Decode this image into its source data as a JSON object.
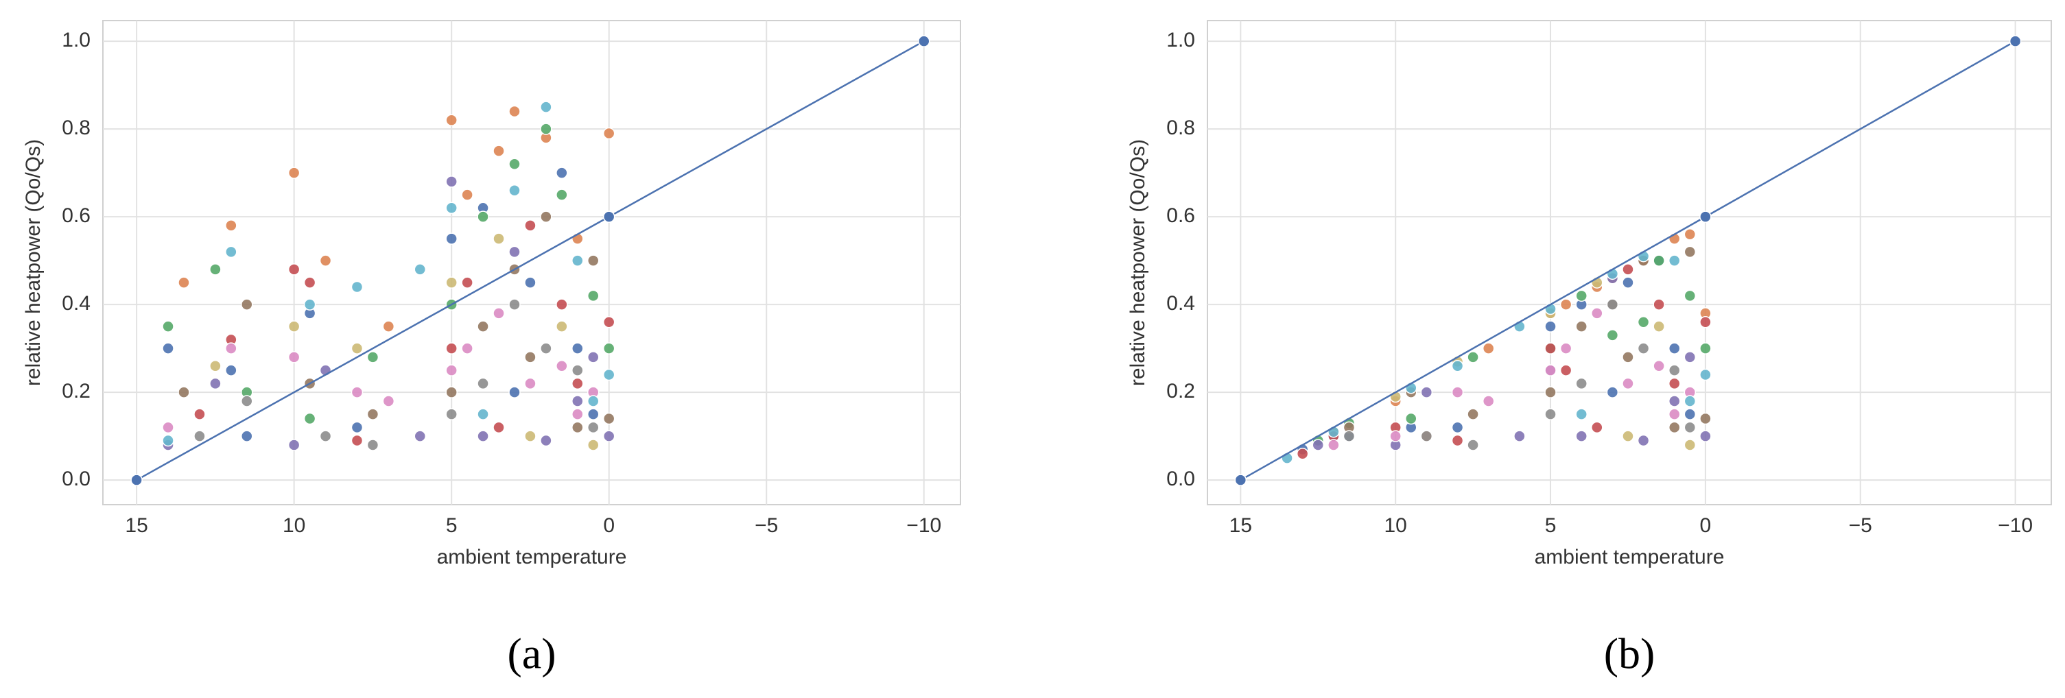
{
  "chart_data": [
    {
      "type": "scatter",
      "caption": "(a)",
      "xlabel": "ambient temperature",
      "ylabel": "relative heatpower (Qo/Qs)",
      "xlim": [
        16.07,
        -11.16
      ],
      "ylim": [
        -0.056,
        1.047
      ],
      "grid": true,
      "xticks": [
        15,
        10,
        5,
        0,
        {
          "value": -5,
          "label": "−5"
        },
        {
          "value": -10,
          "label": "−10"
        }
      ],
      "yticks": [
        {
          "value": 0,
          "label": "0.0"
        },
        0.2,
        0.4,
        0.6,
        0.8,
        {
          "value": 1,
          "label": "1.0"
        }
      ],
      "line": {
        "color": "#4c72b0",
        "x": [
          15,
          0,
          -10
        ],
        "values": [
          0,
          0.6,
          1
        ]
      },
      "series": [
        {
          "color": "#4c72b0",
          "x": [
            14,
            12,
            11.5,
            9.5,
            8,
            5,
            4,
            3,
            2.5,
            1.5,
            1,
            0.5
          ],
          "values": [
            0.3,
            0.25,
            0.1,
            0.38,
            0.12,
            0.55,
            0.62,
            0.2,
            0.45,
            0.7,
            0.3,
            0.15
          ]
        },
        {
          "color": "#dd8452",
          "x": [
            13.5,
            12,
            10,
            9,
            7,
            5,
            4.5,
            3.5,
            3,
            2,
            1,
            0
          ],
          "values": [
            0.45,
            0.58,
            0.7,
            0.5,
            0.35,
            0.82,
            0.65,
            0.75,
            0.84,
            0.78,
            0.55,
            0.79
          ]
        },
        {
          "color": "#55a868",
          "x": [
            14,
            12.5,
            11.5,
            9.5,
            7.5,
            5,
            4,
            3,
            2,
            1.5,
            0.5,
            0
          ],
          "values": [
            0.35,
            0.48,
            0.2,
            0.14,
            0.28,
            0.4,
            0.6,
            0.72,
            0.8,
            0.65,
            0.42,
            0.3
          ]
        },
        {
          "color": "#c44e52",
          "x": [
            13,
            12,
            10,
            9.5,
            8,
            5,
            4.5,
            3.5,
            2.5,
            1.5,
            1,
            0
          ],
          "values": [
            0.15,
            0.32,
            0.48,
            0.45,
            0.09,
            0.3,
            0.45,
            0.12,
            0.58,
            0.4,
            0.22,
            0.36
          ]
        },
        {
          "color": "#8172b3",
          "x": [
            14,
            12.5,
            10,
            9,
            6,
            5,
            4,
            3,
            2,
            1,
            0.5,
            0
          ],
          "values": [
            0.08,
            0.22,
            0.08,
            0.25,
            0.1,
            0.68,
            0.1,
            0.52,
            0.09,
            0.18,
            0.28,
            0.1
          ]
        },
        {
          "color": "#937860",
          "x": [
            13.5,
            11.5,
            9.5,
            7.5,
            5,
            4,
            3,
            2.5,
            2,
            1,
            0.5,
            0
          ],
          "values": [
            0.2,
            0.4,
            0.22,
            0.15,
            0.2,
            0.35,
            0.48,
            0.28,
            0.6,
            0.12,
            0.5,
            0.14
          ]
        },
        {
          "color": "#da8bc3",
          "x": [
            14,
            12,
            10,
            8,
            7,
            5,
            4.5,
            3.5,
            2.5,
            1.5,
            1,
            0.5
          ],
          "values": [
            0.12,
            0.3,
            0.28,
            0.2,
            0.18,
            0.25,
            0.3,
            0.38,
            0.22,
            0.26,
            0.15,
            0.2
          ]
        },
        {
          "color": "#8c8c8c",
          "x": [
            13,
            11.5,
            9,
            7.5,
            5,
            4,
            3,
            2,
            1,
            0.5
          ],
          "values": [
            0.1,
            0.18,
            0.1,
            0.08,
            0.15,
            0.22,
            0.4,
            0.3,
            0.25,
            0.12
          ]
        },
        {
          "color": "#ccb974",
          "x": [
            12.5,
            10,
            8,
            5,
            3.5,
            2.5,
            1.5,
            0.5
          ],
          "values": [
            0.26,
            0.35,
            0.3,
            0.45,
            0.55,
            0.1,
            0.35,
            0.08
          ]
        },
        {
          "color": "#64b5cd",
          "x": [
            14,
            12,
            9.5,
            8,
            6,
            5,
            4,
            3,
            2,
            1,
            0.5,
            0
          ],
          "values": [
            0.09,
            0.52,
            0.4,
            0.44,
            0.48,
            0.62,
            0.15,
            0.66,
            0.85,
            0.5,
            0.18,
            0.24
          ]
        }
      ]
    },
    {
      "type": "scatter",
      "caption": "(b)",
      "xlabel": "ambient temperature",
      "ylabel": "relative heatpower (Qo/Qs)",
      "xlim": [
        16.07,
        -11.16
      ],
      "ylim": [
        -0.056,
        1.047
      ],
      "grid": true,
      "xticks": [
        15,
        10,
        5,
        0,
        {
          "value": -5,
          "label": "−5"
        },
        {
          "value": -10,
          "label": "−10"
        }
      ],
      "yticks": [
        {
          "value": 0,
          "label": "0.0"
        },
        0.2,
        0.4,
        0.6,
        0.8,
        {
          "value": 1,
          "label": "1.0"
        }
      ],
      "line": {
        "color": "#4c72b0",
        "x": [
          15,
          0,
          -10
        ],
        "values": [
          0,
          0.6,
          1
        ]
      },
      "series": [
        {
          "color": "#4c72b0",
          "x": [
            13,
            12,
            11.5,
            9.5,
            8,
            5,
            4,
            3,
            2.5,
            1.5,
            1,
            0.5
          ],
          "values": [
            0.07,
            0.1,
            0.1,
            0.12,
            0.12,
            0.35,
            0.4,
            0.2,
            0.45,
            0.5,
            0.3,
            0.15
          ]
        },
        {
          "color": "#dd8452",
          "x": [
            12,
            10,
            9,
            7,
            5,
            4.5,
            3.5,
            3,
            2,
            1,
            0.5,
            0
          ],
          "values": [
            0.11,
            0.18,
            0.1,
            0.3,
            0.38,
            0.4,
            0.44,
            0.46,
            0.5,
            0.55,
            0.56,
            0.38
          ]
        },
        {
          "color": "#55a868",
          "x": [
            12.5,
            11.5,
            9.5,
            7.5,
            5,
            4,
            3,
            2,
            1.5,
            0.5,
            0
          ],
          "values": [
            0.09,
            0.13,
            0.14,
            0.28,
            0.3,
            0.42,
            0.33,
            0.36,
            0.5,
            0.42,
            0.3
          ]
        },
        {
          "color": "#c44e52",
          "x": [
            13,
            12,
            10,
            8,
            5,
            4.5,
            3.5,
            2.5,
            1.5,
            1,
            0
          ],
          "values": [
            0.06,
            0.1,
            0.12,
            0.09,
            0.3,
            0.25,
            0.12,
            0.48,
            0.4,
            0.22,
            0.36
          ]
        },
        {
          "color": "#8172b3",
          "x": [
            12.5,
            10,
            9,
            6,
            5,
            4,
            3,
            2,
            1,
            0.5,
            0
          ],
          "values": [
            0.08,
            0.08,
            0.2,
            0.1,
            0.25,
            0.1,
            0.46,
            0.09,
            0.18,
            0.28,
            0.1
          ]
        },
        {
          "color": "#937860",
          "x": [
            11.5,
            9.5,
            7.5,
            5,
            4,
            3,
            2.5,
            2,
            1,
            0.5,
            0
          ],
          "values": [
            0.12,
            0.2,
            0.15,
            0.2,
            0.35,
            0.4,
            0.28,
            0.5,
            0.12,
            0.52,
            0.14
          ]
        },
        {
          "color": "#da8bc3",
          "x": [
            12,
            10,
            8,
            7,
            5,
            4.5,
            3.5,
            2.5,
            1.5,
            1,
            0.5
          ],
          "values": [
            0.08,
            0.1,
            0.2,
            0.18,
            0.25,
            0.3,
            0.38,
            0.22,
            0.26,
            0.15,
            0.2
          ]
        },
        {
          "color": "#8c8c8c",
          "x": [
            11.5,
            9,
            7.5,
            5,
            4,
            3,
            2,
            1,
            0.5
          ],
          "values": [
            0.1,
            0.1,
            0.08,
            0.15,
            0.22,
            0.4,
            0.3,
            0.25,
            0.12
          ]
        },
        {
          "color": "#ccb974",
          "x": [
            10,
            8,
            5,
            3.5,
            2.5,
            1.5,
            0.5
          ],
          "values": [
            0.19,
            0.27,
            0.38,
            0.45,
            0.1,
            0.35,
            0.08
          ]
        },
        {
          "color": "#64b5cd",
          "x": [
            13.5,
            12,
            9.5,
            8,
            6,
            5,
            4,
            3,
            2,
            1,
            0.5,
            0
          ],
          "values": [
            0.05,
            0.11,
            0.21,
            0.26,
            0.35,
            0.39,
            0.15,
            0.47,
            0.51,
            0.5,
            0.18,
            0.24
          ]
        }
      ]
    }
  ]
}
